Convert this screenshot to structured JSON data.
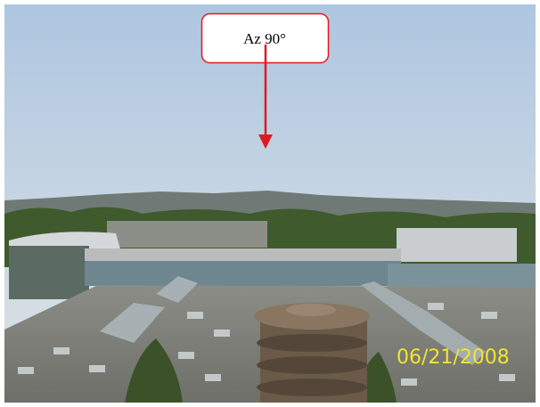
{
  "callout": {
    "label": "Az 90°"
  },
  "photo": {
    "date_stamp": "06/21/2008"
  }
}
